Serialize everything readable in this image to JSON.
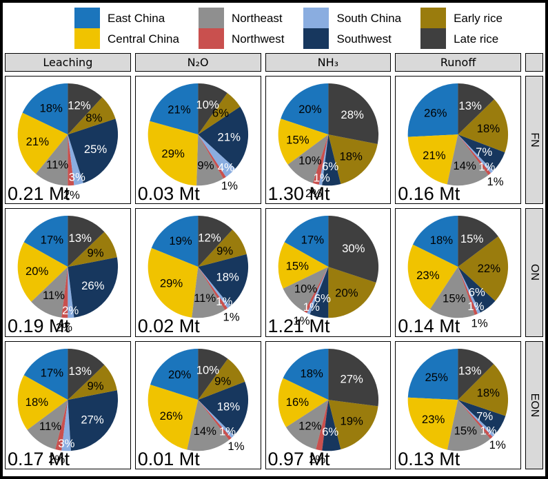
{
  "ui_colors": {
    "panel_border": "#000000",
    "header_fill": "#d9d9d9",
    "background": "#ffffff"
  },
  "chart_data": {
    "type": "pie",
    "title": "",
    "legend_position": "top",
    "unit": "Mt",
    "regions": [
      {
        "name": "East China",
        "color": "#1b75bc",
        "label_color": "#000000"
      },
      {
        "name": "Central China",
        "color": "#f0c300",
        "label_color": "#000000"
      },
      {
        "name": "Northeast",
        "color": "#8f8f8f",
        "label_color": "#000000"
      },
      {
        "name": "Northwest",
        "color": "#c9504e",
        "label_color": "#000000"
      },
      {
        "name": "South China",
        "color": "#8aade0",
        "label_color": "#ffffff"
      },
      {
        "name": "Southwest",
        "color": "#17375e",
        "label_color": "#ffffff"
      },
      {
        "name": "Early rice",
        "color": "#9a7c0d",
        "label_color": "#000000"
      },
      {
        "name": "Late rice",
        "color": "#3f3f3f",
        "label_color": "#ffffff"
      }
    ],
    "columns": [
      "Leaching",
      "N₂O",
      "NH₃",
      "Runoff"
    ],
    "rows": [
      {
        "label": "FN",
        "cells": [
          {
            "total": "0.21 Mt",
            "values": [
              18,
              21,
              11,
              2,
              3,
              25,
              8,
              12
            ]
          },
          {
            "total": "0.03 Mt",
            "values": [
              21,
              29,
              9,
              1,
              4,
              21,
              6,
              10
            ]
          },
          {
            "total": "1.30 Mt",
            "values": [
              20,
              15,
              10,
              2,
              1,
              6,
              18,
              28
            ]
          },
          {
            "total": "0.16 Mt",
            "values": [
              26,
              21,
              14,
              1,
              1,
              7,
              18,
              13
            ]
          }
        ]
      },
      {
        "label": "ON",
        "cells": [
          {
            "total": "0.19 Mt",
            "values": [
              17,
              20,
              11,
              2,
              2,
              26,
              9,
              13
            ]
          },
          {
            "total": "0.02 Mt",
            "values": [
              19,
              29,
              11,
              1,
              1,
              18,
              9,
              12
            ]
          },
          {
            "total": "1.21 Mt",
            "values": [
              17,
              15,
              10,
              1,
              1,
              6,
              20,
              30
            ]
          },
          {
            "total": "0.14 Mt",
            "values": [
              18,
              23,
              15,
              1,
              1,
              6,
              22,
              15
            ]
          }
        ]
      },
      {
        "label": "EON",
        "cells": [
          {
            "total": "0.17 Mt",
            "values": [
              17,
              18,
              11,
              2,
              3,
              27,
              9,
              13
            ]
          },
          {
            "total": "0.01 Mt",
            "values": [
              20,
              26,
              14,
              1,
              1,
              18,
              9,
              10
            ]
          },
          {
            "total": "0.97 Mt",
            "values": [
              18,
              16,
              12,
              2,
              0,
              6,
              19,
              27
            ]
          },
          {
            "total": "0.13 Mt",
            "values": [
              25,
              23,
              15,
              1,
              1,
              7,
              18,
              13
            ]
          }
        ]
      }
    ]
  }
}
